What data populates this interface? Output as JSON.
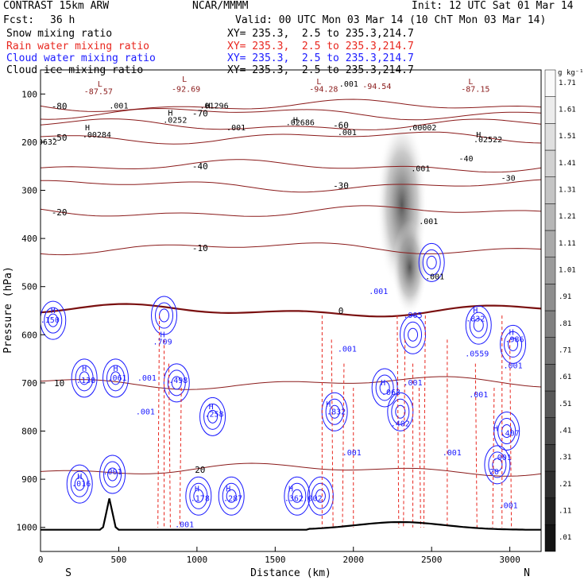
{
  "header": {
    "model": "CONTRAST 15km ARW",
    "org": "NCAR/MMMM",
    "init": "Init: 12 UTC Sat 01 Mar 14",
    "fcst_label": "Fcst:",
    "fcst_value": "36 h",
    "valid": "Valid: 00 UTC Mon 03 Mar 14 (10 ChT Mon 03 Mar 14)"
  },
  "fields": [
    {
      "name": "Snow mixing ratio",
      "xy": "",
      "color": "#000000"
    },
    {
      "name": "Rain water mixing ratio",
      "xy": "XY= 235.3,  2.5 to 235.3,214.7",
      "color": "#e8261e"
    },
    {
      "name": "Cloud water mixing ratio",
      "xy": "XY= 235.3,  2.5 to 235.3,214.7",
      "color": "#1a1aff"
    },
    {
      "name": "Cloud ice mixing ratio",
      "xy": "XY= 235.3,  2.5 to 235.3,214.7",
      "color": "#000000"
    }
  ],
  "snow_xy": "XY= 235.3,  2.5 to 235.3,214.7",
  "chart_data": {
    "type": "contour_cross_section",
    "xlabel": "Distance (km)",
    "ylabel": "Pressure (hPa)",
    "xlim": [
      0,
      3200
    ],
    "ylim": [
      1050,
      50
    ],
    "x_ticks": [
      0,
      500,
      1000,
      1500,
      2000,
      2500,
      3000
    ],
    "y_ticks": [
      100,
      200,
      300,
      400,
      500,
      600,
      700,
      800,
      900,
      1000
    ],
    "x_end_labels": {
      "left": "S",
      "right": "N"
    },
    "colorbar": {
      "unit": "g kg⁻¹",
      "levels": [
        ".01",
        ".11",
        ".21",
        ".31",
        ".41",
        ".51",
        ".61",
        ".71",
        ".81",
        ".91",
        "1.01",
        "1.11",
        "1.21",
        "1.31",
        "1.41",
        "1.51",
        "1.61",
        "1.71"
      ]
    },
    "temperature_contours": [
      {
        "label": "-80",
        "p": 125
      },
      {
        "label": "-70",
        "p": 140
      },
      {
        "label": "-60",
        "p": 165
      },
      {
        "label": "-50",
        "p": 190
      },
      {
        "label": "-40",
        "p": 250
      },
      {
        "label": "-30",
        "p": 290
      },
      {
        "label": "-20",
        "p": 345
      },
      {
        "label": "-10",
        "p": 420
      },
      {
        "label": "0",
        "p": 550
      },
      {
        "label": "10",
        "p": 700
      },
      {
        "label": "20",
        "p": 880
      }
    ],
    "labels": [
      {
        "text": "L",
        "x": 380,
        "p": 85
      },
      {
        "text": "-87.57",
        "x": 370,
        "p": 100
      },
      {
        "text": "L",
        "x": 920,
        "p": 75
      },
      {
        "text": "-92.69",
        "x": 930,
        "p": 95
      },
      {
        "text": "L",
        "x": 1780,
        "p": 80
      },
      {
        "text": "-94.28",
        "x": 1810,
        "p": 95
      },
      {
        "text": "-94.54",
        "x": 2150,
        "p": 90
      },
      {
        "text": "L",
        "x": 2750,
        "p": 80
      },
      {
        "text": "-87.15",
        "x": 2780,
        "p": 95
      },
      {
        "text": ".001",
        "x": 500,
        "p": 130
      },
      {
        "text": "H",
        "x": 830,
        "p": 145
      },
      {
        "text": ".0252",
        "x": 860,
        "p": 160
      },
      {
        "text": "H",
        "x": 1070,
        "p": 130
      },
      {
        "text": ".01296",
        "x": 1110,
        "p": 130
      },
      {
        "text": "H",
        "x": 1630,
        "p": 160
      },
      {
        "text": ".02686",
        "x": 1660,
        "p": 165
      },
      {
        "text": ".001",
        "x": 1970,
        "p": 85
      },
      {
        "text": ".001",
        "x": 1960,
        "p": 185
      },
      {
        "text": ".00002",
        "x": 2440,
        "p": 175
      },
      {
        "text": ".001",
        "x": 2430,
        "p": 260
      },
      {
        "text": "H",
        "x": 2800,
        "p": 190
      },
      {
        "text": ".02522",
        "x": 2860,
        "p": 200
      },
      {
        "text": ".0632",
        "x": 30,
        "p": 205
      },
      {
        "text": "H",
        "x": 300,
        "p": 175
      },
      {
        "text": ".00284",
        "x": 360,
        "p": 190
      },
      {
        "text": ".001",
        "x": 1250,
        "p": 175
      },
      {
        "text": "H",
        "x": 80,
        "p": 555
      },
      {
        "text": ".150",
        "x": 60,
        "p": 575
      },
      {
        "text": "H",
        "x": 780,
        "p": 605
      },
      {
        "text": ".709",
        "x": 780,
        "p": 620
      },
      {
        "text": "H",
        "x": 280,
        "p": 675
      },
      {
        "text": ".138",
        "x": 290,
        "p": 700
      },
      {
        "text": "H",
        "x": 480,
        "p": 675
      },
      {
        "text": ".061",
        "x": 490,
        "p": 695
      },
      {
        "text": ".001",
        "x": 680,
        "p": 695
      },
      {
        "text": ".498",
        "x": 880,
        "p": 700
      },
      {
        "text": ".001",
        "x": 670,
        "p": 765
      },
      {
        "text": "H",
        "x": 1090,
        "p": 755
      },
      {
        "text": ".258",
        "x": 1110,
        "p": 770
      },
      {
        "text": "H",
        "x": 250,
        "p": 900
      },
      {
        "text": ".016",
        "x": 260,
        "p": 915
      },
      {
        "text": ".001",
        "x": 460,
        "p": 890
      },
      {
        "text": "H",
        "x": 1000,
        "p": 925
      },
      {
        "text": ".178",
        "x": 1020,
        "p": 945
      },
      {
        "text": "H",
        "x": 1200,
        "p": 925
      },
      {
        "text": ".287",
        "x": 1230,
        "p": 945
      },
      {
        "text": "H",
        "x": 1600,
        "p": 925
      },
      {
        "text": ".362",
        "x": 1620,
        "p": 945
      },
      {
        "text": ".002",
        "x": 1740,
        "p": 945
      },
      {
        "text": "H",
        "x": 1840,
        "p": 750
      },
      {
        "text": ".832",
        "x": 1890,
        "p": 765
      },
      {
        "text": ".001",
        "x": 1960,
        "p": 635
      },
      {
        "text": ".001",
        "x": 2160,
        "p": 515
      },
      {
        "text": ".001",
        "x": 2480,
        "p": 370
      },
      {
        "text": ".001",
        "x": 2520,
        "p": 485
      },
      {
        "text": ".905",
        "x": 2380,
        "p": 565
      },
      {
        "text": "H",
        "x": 2190,
        "p": 705
      },
      {
        "text": ".063",
        "x": 2240,
        "p": 725
      },
      {
        "text": ".001",
        "x": 2380,
        "p": 705
      },
      {
        "text": ".402",
        "x": 2300,
        "p": 790
      },
      {
        "text": "H",
        "x": 2780,
        "p": 555
      },
      {
        "text": ".832",
        "x": 2780,
        "p": 572
      },
      {
        "text": "H",
        "x": 3010,
        "p": 600
      },
      {
        "text": ".986",
        "x": 3030,
        "p": 615
      },
      {
        "text": ".001",
        "x": 3020,
        "p": 670
      },
      {
        "text": ".0559",
        "x": 2790,
        "p": 645
      },
      {
        "text": ".001",
        "x": 2800,
        "p": 730
      },
      {
        "text": "H",
        "x": 2910,
        "p": 800
      },
      {
        "text": ".407",
        "x": 3000,
        "p": 810
      },
      {
        "text": ".001",
        "x": 2950,
        "p": 860
      },
      {
        "text": ".001",
        "x": 1990,
        "p": 850
      },
      {
        "text": ".001",
        "x": 2630,
        "p": 850
      },
      {
        "text": ".001",
        "x": 2990,
        "p": 960
      },
      {
        "text": ".001",
        "x": 920,
        "p": 1000
      },
      {
        "text": "20",
        "x": 2900,
        "p": 890
      },
      {
        "text": "-30",
        "x": 2990,
        "p": 280
      },
      {
        "text": "-40",
        "x": 2720,
        "p": 240
      }
    ],
    "bumps": {
      "mountain_x": 440,
      "mountain_p": 940
    }
  }
}
